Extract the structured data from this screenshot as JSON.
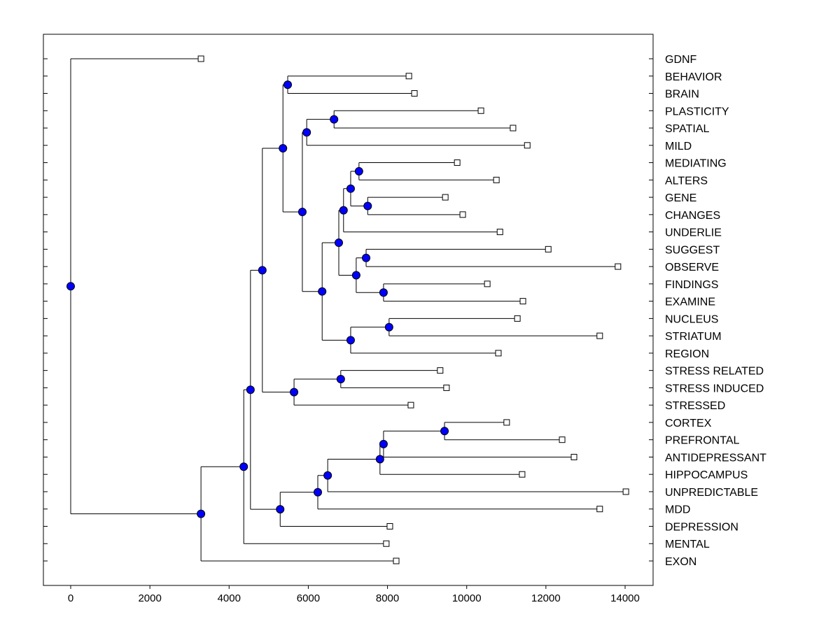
{
  "chart_data": {
    "type": "dendrogram",
    "xlim": [
      0,
      14000
    ],
    "xticks": [
      "0",
      "2000",
      "4000",
      "6000",
      "8000",
      "10000",
      "12000",
      "14000"
    ],
    "leaf_order": [
      "GDNF",
      "BEHAVIOR",
      "BRAIN",
      "PLASTICITY",
      "SPATIAL",
      "MILD",
      "MEDIATING",
      "ALTERS",
      "GENE",
      "CHANGES",
      "UNDERLIE",
      "SUGGEST",
      "OBSERVE",
      "FINDINGS",
      "EXAMINE",
      "NUCLEUS",
      "STRIATUM",
      "REGION",
      "STRESS RELATED",
      "STRESS INDUCED",
      "STRESSED",
      "CORTEX",
      "PREFRONTAL",
      "ANTIDEPRESSANT",
      "HIPPOCAMPUS",
      "UNPREDICTABLE",
      "MDD",
      "DEPRESSION",
      "MENTAL",
      "EXON"
    ],
    "leaf_values": {
      "GDNF": 3290,
      "BEHAVIOR": 8540,
      "BRAIN": 8680,
      "PLASTICITY": 10360,
      "SPATIAL": 11170,
      "MILD": 11530,
      "MEDIATING": 9760,
      "ALTERS": 10750,
      "GENE": 9460,
      "CHANGES": 9900,
      "UNDERLIE": 10840,
      "SUGGEST": 12060,
      "OBSERVE": 13820,
      "FINDINGS": 10520,
      "EXAMINE": 11420,
      "NUCLEUS": 11280,
      "STRIATUM": 13360,
      "REGION": 10800,
      "STRESS RELATED": 9330,
      "STRESS INDUCED": 9490,
      "STRESSED": 8590,
      "CORTEX": 11010,
      "PREFRONTAL": 12410,
      "ANTIDEPRESSANT": 12710,
      "HIPPOCAMPUS": 11400,
      "UNPREDICTABLE": 14020,
      "MDD": 13360,
      "DEPRESSION": 8060,
      "MENTAL": 7970,
      "EXON": 8220
    },
    "tree": {
      "v": 0,
      "c": [
        "GDNF",
        {
          "v": 3290,
          "c": [
            {
              "v": 4370,
              "c": [
                {
                  "v": 4540,
                  "c": [
                    {
                      "v": 4840,
                      "c": [
                        {
                          "v": 5360,
                          "c": [
                            {
                              "v": 5480,
                              "c": [
                                "BEHAVIOR",
                                "BRAIN"
                              ]
                            },
                            {
                              "v": 5850,
                              "c": [
                                {
                                  "v": 5960,
                                  "c": [
                                    {
                                      "v": 6650,
                                      "c": [
                                        "PLASTICITY",
                                        "SPATIAL"
                                      ]
                                    },
                                    "MILD"
                                  ]
                                },
                                {
                                  "v": 6350,
                                  "c": [
                                    {
                                      "v": 6770,
                                      "c": [
                                        {
                                          "v": 6890,
                                          "c": [
                                            {
                                              "v": 7070,
                                              "c": [
                                                {
                                                  "v": 7280,
                                                  "c": [
                                                    "MEDIATING",
                                                    "ALTERS"
                                                  ]
                                                },
                                                {
                                                  "v": 7500,
                                                  "c": [
                                                    "GENE",
                                                    "CHANGES"
                                                  ]
                                                }
                                              ]
                                            },
                                            "UNDERLIE"
                                          ]
                                        },
                                        {
                                          "v": 7210,
                                          "c": [
                                            {
                                              "v": 7460,
                                              "c": [
                                                "SUGGEST",
                                                "OBSERVE"
                                              ]
                                            },
                                            {
                                              "v": 7900,
                                              "c": [
                                                "FINDINGS",
                                                "EXAMINE"
                                              ]
                                            }
                                          ]
                                        }
                                      ]
                                    },
                                    {
                                      "v": 7070,
                                      "c": [
                                        {
                                          "v": 8040,
                                          "c": [
                                            "NUCLEUS",
                                            "STRIATUM"
                                          ]
                                        },
                                        "REGION"
                                      ]
                                    }
                                  ]
                                }
                              ]
                            }
                          ]
                        },
                        {
                          "v": 5640,
                          "c": [
                            {
                              "v": 6820,
                              "c": [
                                "STRESS RELATED",
                                "STRESS INDUCED"
                              ]
                            },
                            "STRESSED"
                          ]
                        }
                      ]
                    },
                    {
                      "v": 5290,
                      "c": [
                        {
                          "v": 6240,
                          "c": [
                            {
                              "v": 6490,
                              "c": [
                                {
                                  "v": 7810,
                                  "c": [
                                    {
                                      "v": 7900,
                                      "c": [
                                        {
                                          "v": 9440,
                                          "c": [
                                            "CORTEX",
                                            "PREFRONTAL"
                                          ]
                                        },
                                        "ANTIDEPRESSANT"
                                      ]
                                    },
                                    "HIPPOCAMPUS"
                                  ]
                                },
                                "UNPREDICTABLE"
                              ]
                            },
                            "MDD"
                          ]
                        },
                        "DEPRESSION"
                      ]
                    }
                  ]
                },
                "MENTAL"
              ]
            },
            "EXON"
          ]
        }
      ]
    },
    "colors": {
      "node": "#0000ff",
      "line": "#000000"
    }
  }
}
